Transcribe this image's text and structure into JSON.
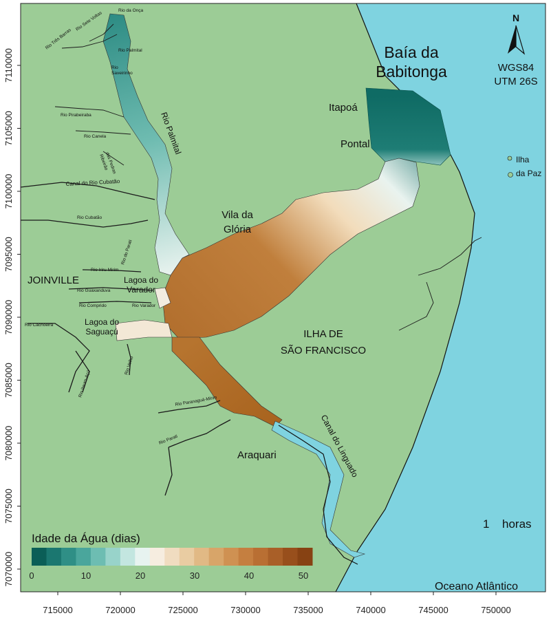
{
  "map": {
    "crs_lines": [
      "WGS84",
      "UTM 26S"
    ],
    "north_label": "N",
    "time_value": "1",
    "time_unit": "horas",
    "ocean_label": "Oceano Atlântico",
    "colors": {
      "land": "#9ccc96",
      "ocean": "#7fd3e0",
      "young_water": "#0f6b64",
      "old_water": "#8b4c10"
    }
  },
  "legend": {
    "title": "Idade da Água (dias)",
    "ticks": [
      "0",
      "10",
      "20",
      "30",
      "40",
      "50"
    ],
    "colors": [
      "#0b5e57",
      "#1b7770",
      "#2f8f86",
      "#4aa69c",
      "#6dbdb2",
      "#98d3ca",
      "#c3e6e0",
      "#e7f3f0",
      "#f6ede0",
      "#f0dcc0",
      "#e9cca2",
      "#e1b985",
      "#d8a569",
      "#cf9152",
      "#c57f40",
      "#b96f33",
      "#a95f28",
      "#984f1c",
      "#874213"
    ]
  },
  "axes": {
    "x_ticks": [
      "715000",
      "720000",
      "725000",
      "730000",
      "735000",
      "740000",
      "745000",
      "750000"
    ],
    "y_ticks": [
      "7070000",
      "7075000",
      "7080000",
      "7085000",
      "7090000",
      "7095000",
      "7100000",
      "7105000",
      "7110000"
    ]
  },
  "places": {
    "baia": [
      "Baía da",
      "Babitonga"
    ],
    "itapoa": "Itapoá",
    "pontal": "Pontal",
    "ilha_paz": [
      "Ilha",
      "da Paz"
    ],
    "vila_gloria": [
      "Vila da",
      "Glória"
    ],
    "joinville": "JOINVILLE",
    "lagoa_varador": [
      "Lagoa do",
      "Varador"
    ],
    "lagoa_saguacu": [
      "Lagoa do",
      "Saguaçú"
    ],
    "ilha_sf": [
      "ILHA DE",
      "SÃO FRANCISCO"
    ],
    "araquari": "Araquari",
    "canal_linguado": "Canal do Linguado",
    "rio_palmital_main": "Rio Palmital",
    "canal_cubatao": "Canal do Rio Cubatão"
  },
  "rivers": {
    "rio_onca": "Rio da Onça",
    "rio_sete_voltas": "Rio Sete Voltas",
    "rio_tres_barras": "Rio Três Barras",
    "rio_palmital_small": "Rio Palmital",
    "rio_saveirinho": [
      "Rio",
      "Saveirinho"
    ],
    "rio_pirabeiraba": "Rio Pirabeiraba",
    "rio_canela": "Rio Canela",
    "ribeirao_pedras": [
      "Ribeirão",
      "das Pedras"
    ],
    "rio_cubatao": "Rio Cubatão",
    "rio_parati_top": "Rio do Parati",
    "rio_iriru_mirim": "Rio Iriru Mirim",
    "rio_guaxanduva": "Rio Guaxanduva",
    "rio_comprido": "Rio Comprido",
    "rio_varador": "Rio Varador",
    "rio_cachoeira": "Rio Cachoeira",
    "rio_itaum": "Rio Itaum-Açú",
    "rio_velho": "Rio Velho",
    "rio_paranagua": "Rio Paranaguá-Mirim",
    "rio_parati": "Rio Parati"
  }
}
